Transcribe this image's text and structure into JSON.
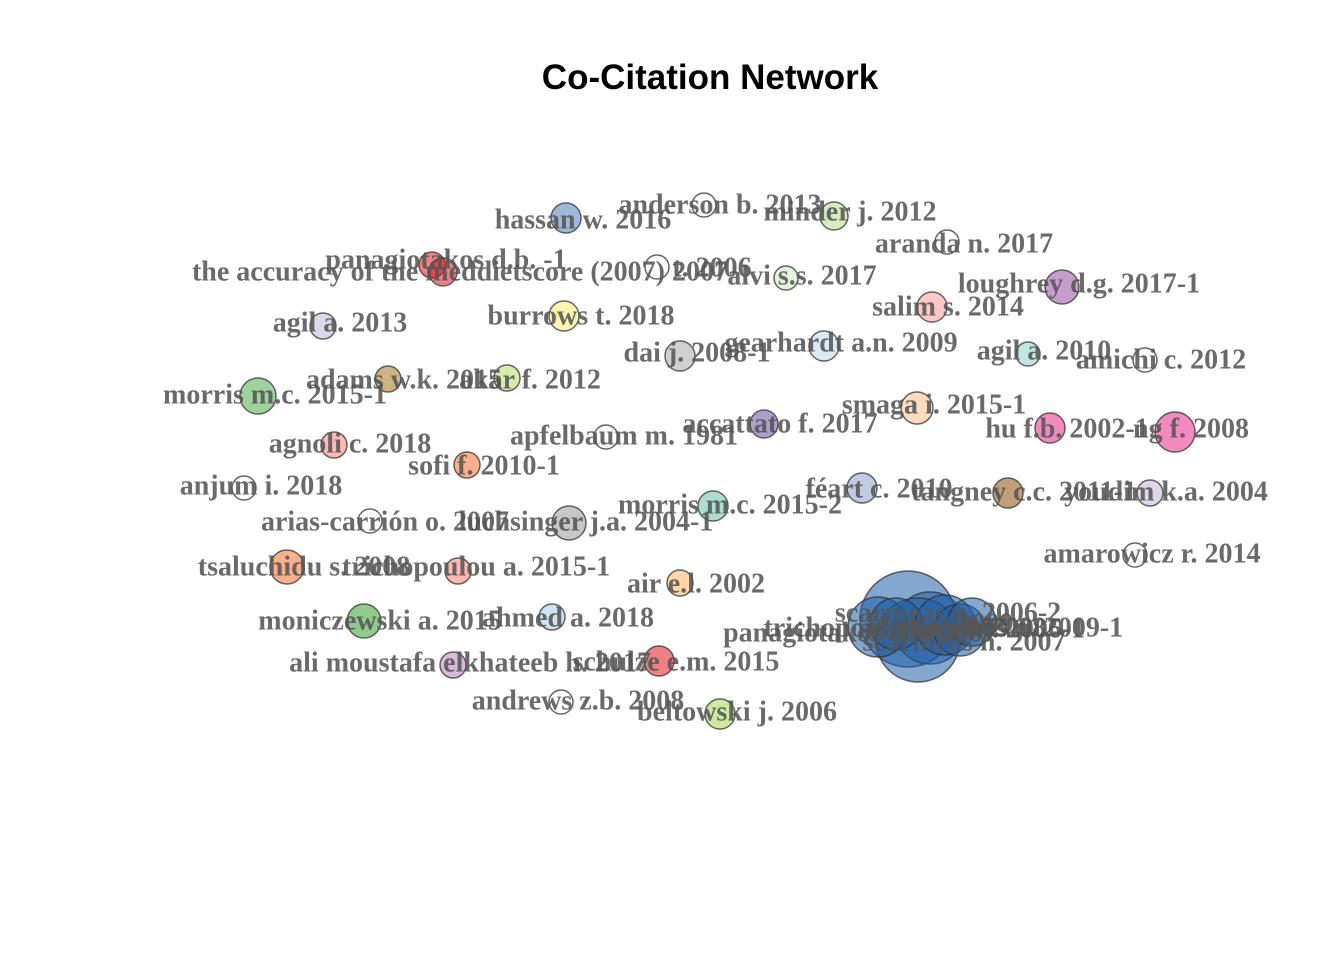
{
  "title": "Co-Citation Network",
  "nodes": [
    {
      "id": "hassan",
      "label": "hassan w. 2016",
      "color": "#4C7EB8"
    },
    {
      "id": "anderson",
      "label": "anderson b. 2013",
      "color": "none"
    },
    {
      "id": "minder",
      "label": "minder j. 2012",
      "color": "#B2DF8A"
    },
    {
      "id": "aranda",
      "label": "aranda n. 2017",
      "color": "none"
    },
    {
      "id": "panagiotakos1",
      "label": "panagiotakos d.b. -1",
      "color": "#E31A1C"
    },
    {
      "id": "accuracy",
      "label": "the accuracy of the meddietscore (2007) 2007",
      "color": "#E31A1C"
    },
    {
      "id": "frame",
      "label": "t. 2006",
      "color": "none"
    },
    {
      "id": "alvi",
      "label": "alvi s.s. 2017",
      "color": "#CCEBC5"
    },
    {
      "id": "loughrey",
      "label": "loughrey d.g. 2017-1",
      "color": "#984EA3"
    },
    {
      "id": "salim",
      "label": "salim s. 2014",
      "color": "#FB9A99"
    },
    {
      "id": "agil2013",
      "label": "agil a. 2013",
      "color": "#BEBADA"
    },
    {
      "id": "burrows",
      "label": "burrows t. 2018",
      "color": "#FFED6F"
    },
    {
      "id": "gearhardt",
      "label": "gearhardt a.n. 2009",
      "color": "#BFD9E8"
    },
    {
      "id": "dai",
      "label": "dai j. 2008-1",
      "color": "#AAAAAA"
    },
    {
      "id": "agil2010",
      "label": "agil a. 2010",
      "color": "#8DD3C7"
    },
    {
      "id": "amichi",
      "label": "amichi c. 2012",
      "color": "none"
    },
    {
      "id": "adams",
      "label": "adams w.k. 2015",
      "color": "#A6761D"
    },
    {
      "id": "akar",
      "label": "akar f. 2012",
      "color": "#B3DE69"
    },
    {
      "id": "morris1",
      "label": "morris m.c. 2015-1",
      "color": "#4DAF4A"
    },
    {
      "id": "smaga",
      "label": "smaga i. 2015-1",
      "color": "#FDC086"
    },
    {
      "id": "accattato",
      "label": "accattato f. 2017",
      "color": "#6A51A3"
    },
    {
      "id": "hu",
      "label": "hu f.b. 2002-1",
      "color": "#E7298A"
    },
    {
      "id": "ng",
      "label": "ng f. 2008",
      "color": "#E7298A"
    },
    {
      "id": "agnoli",
      "label": "agnoli c. 2018",
      "color": "#FB8072"
    },
    {
      "id": "apfelbaum",
      "label": "apfelbaum m. 1981",
      "color": "none"
    },
    {
      "id": "sofi",
      "label": "sofi f. 2010-1",
      "color": "#F46D2C"
    },
    {
      "id": "anjum",
      "label": "anjum i. 2018",
      "color": "none"
    },
    {
      "id": "feart",
      "label": "féart c. 2010",
      "color": "#8DA0CB"
    },
    {
      "id": "tangney",
      "label": "tangney c.c. 2011-1",
      "color": "#8C510A"
    },
    {
      "id": "youdim",
      "label": "youdim k.a. 2004",
      "color": "#CAB2D6"
    },
    {
      "id": "morris2",
      "label": "morris m.c. 2015-2",
      "color": "#66C2A5"
    },
    {
      "id": "arias",
      "label": "arias-carrión o. 2007",
      "color": "none"
    },
    {
      "id": "lucchinger",
      "label": "luchsinger j.a. 2004-1",
      "color": "#999999"
    },
    {
      "id": "amarowicz",
      "label": "amarowicz r. 2014",
      "color": "none"
    },
    {
      "id": "tsaluchidu",
      "label": "tsaluchidu s. 2008",
      "color": "#F46D2C"
    },
    {
      "id": "trichopoulou",
      "label": "trichopoulou a. 2015-1",
      "color": "#FB8072"
    },
    {
      "id": "air",
      "label": "air e.l. 2002",
      "color": "#FDB462"
    },
    {
      "id": "moniczewski",
      "label": "moniczewski a. 2015",
      "color": "#33A02C"
    },
    {
      "id": "ahmed",
      "label": "ahmed a. 2018",
      "color": "#A6CEE3"
    },
    {
      "id": "ali",
      "label": "ali moustafa elkhateeb h. 2017",
      "color": "#BC80BD"
    },
    {
      "id": "schulze",
      "label": "schulze e.m. 2015",
      "color": "#E31A1C"
    },
    {
      "id": "andrews",
      "label": "andrews z.b. 2008",
      "color": "none"
    },
    {
      "id": "beltowski",
      "label": "beltowski j. 2006",
      "color": "#A6D854"
    },
    {
      "id": "scarmeas2",
      "label": "scarmeas n. 2006-2",
      "color": "#1F5FA8"
    },
    {
      "id": "scarmeas1",
      "label": "scarmeas n. 2006-1",
      "color": "#1F5FA8"
    },
    {
      "id": "scarmeas2007",
      "label": "scarmeas n. 2007",
      "color": "#1F5FA8"
    },
    {
      "id": "panagiotakos2",
      "label": "panagiotakos d.b. 2007",
      "color": "#1F5FA8"
    },
    {
      "id": "trichopoulou2",
      "label": "trichopoulou a. 2003",
      "color": "#1F5FA8"
    },
    {
      "id": "feart2009",
      "label": "féart c. 2009",
      "color": "#1F5FA8"
    },
    {
      "id": "sofi2008",
      "label": "sofi f. 2008",
      "color": "#1F5FA8"
    },
    {
      "id": "scarmeas2009",
      "label": "scarmeas n. 2009-1",
      "color": "#1F5FA8"
    }
  ]
}
